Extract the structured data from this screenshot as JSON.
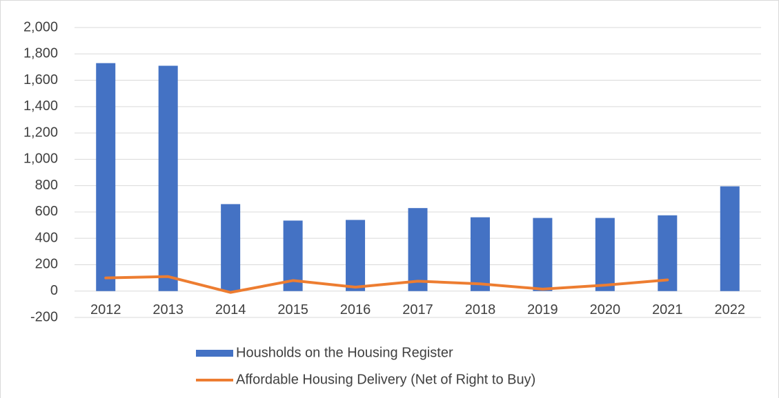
{
  "chart_data": {
    "type": "bar",
    "categories": [
      "2012",
      "2013",
      "2014",
      "2015",
      "2016",
      "2017",
      "2018",
      "2019",
      "2020",
      "2021",
      "2022"
    ],
    "series": [
      {
        "name": "Housholds on the Housing Register",
        "type": "bar",
        "color": "#4472c4",
        "values": [
          1730,
          1710,
          660,
          535,
          540,
          630,
          560,
          555,
          555,
          575,
          795
        ]
      },
      {
        "name": "Affordable Housing Delivery (Net of Right to Buy)",
        "type": "line",
        "color": "#ed7d31",
        "values": [
          100,
          110,
          -10,
          80,
          30,
          75,
          55,
          15,
          45,
          85,
          null
        ]
      }
    ],
    "ylim": [
      -200,
      2000
    ],
    "yticks": [
      -200,
      0,
      200,
      400,
      600,
      800,
      {
        "value": 1000,
        "label": "1,000"
      },
      {
        "value": 1200,
        "label": "1,200"
      },
      {
        "value": 1400,
        "label": "1,400"
      },
      {
        "value": 1600,
        "label": "1,600"
      },
      {
        "value": 1800,
        "label": "1,800"
      },
      {
        "value": 2000,
        "label": "2,000"
      }
    ],
    "grid": true,
    "legend": "bottom"
  }
}
